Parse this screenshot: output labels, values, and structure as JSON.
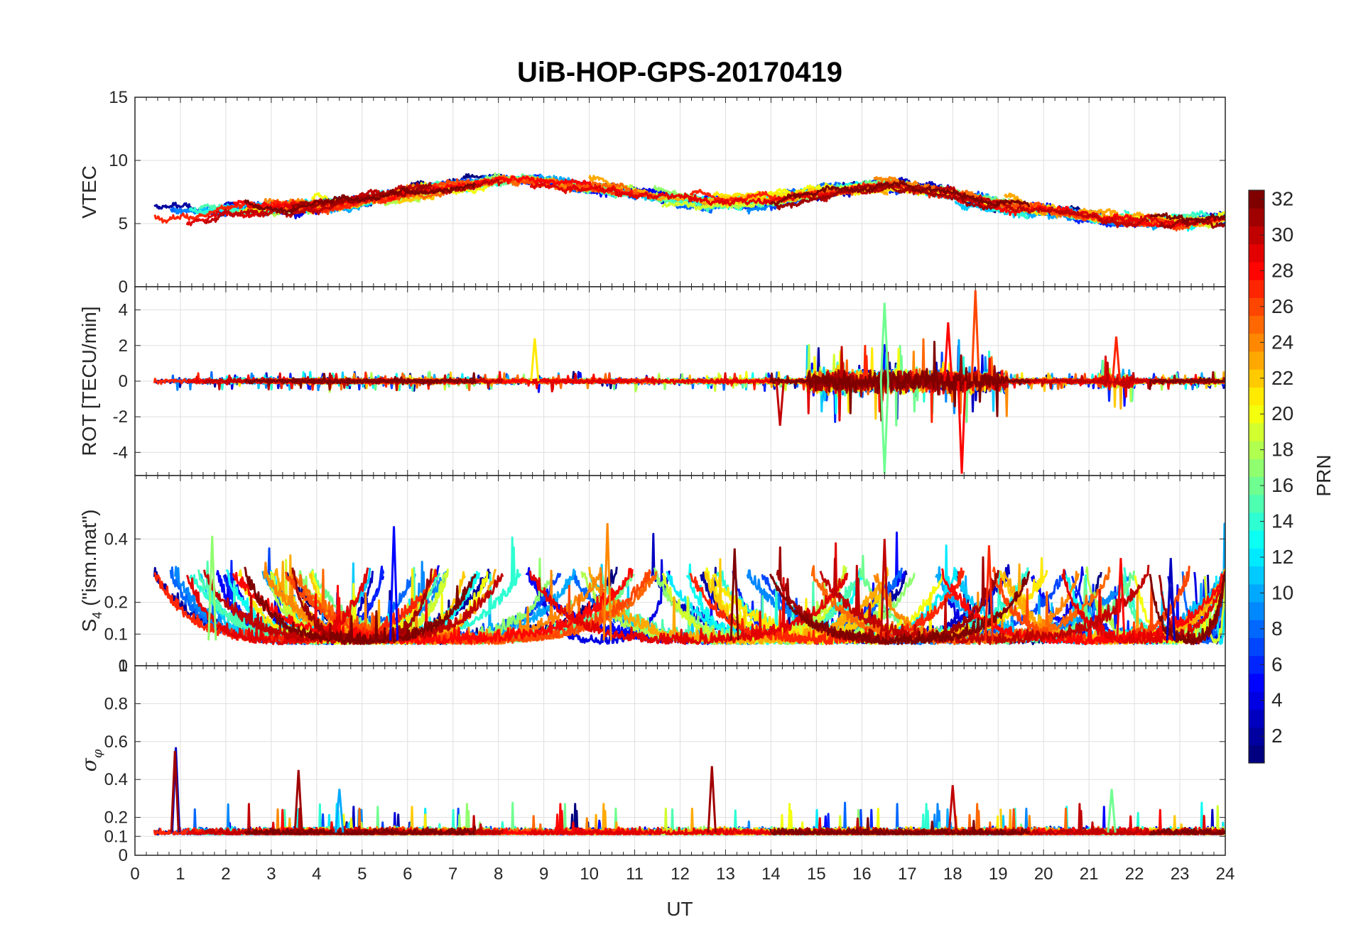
{
  "chart_data": {
    "type": "line",
    "title": "UiB-HOP-GPS-20170419",
    "xlabel": "UT",
    "xlim": [
      0,
      24
    ],
    "x_ticks": [
      "0",
      "1",
      "2",
      "3",
      "4",
      "5",
      "6",
      "7",
      "8",
      "9",
      "10",
      "11",
      "12",
      "13",
      "14",
      "15",
      "16",
      "17",
      "18",
      "19",
      "20",
      "21",
      "22",
      "23",
      "24"
    ],
    "grid": true,
    "colorbar": {
      "label": "PRN",
      "range": [
        1,
        32
      ],
      "ticks": [
        "2",
        "4",
        "6",
        "8",
        "10",
        "12",
        "14",
        "16",
        "18",
        "20",
        "22",
        "24",
        "26",
        "28",
        "30",
        "32"
      ],
      "colormap": "jet",
      "placement": "right"
    },
    "panels": [
      {
        "id": "vtec",
        "ylabel": "VTEC",
        "ylim": [
          0,
          15
        ],
        "y_ticks": [
          "0",
          "5",
          "10",
          "15"
        ],
        "behavior": "slowly varying 4-12 TECU, higher near 7-10 UT and 17-18 UT, lower after 19 UT"
      },
      {
        "id": "rot",
        "ylabel": "ROT [TECU/min]",
        "ylim": [
          -5.3,
          5.3
        ],
        "y_ticks": [
          "-4",
          "-2",
          "0",
          "2",
          "4"
        ],
        "behavior": "near zero, strong spikes between 15 and 19 UT reaching about +5 and -5"
      },
      {
        "id": "s4",
        "ylabel": "S4 (\"ism.mat\")",
        "ylabel_main": "S",
        "ylabel_sub": "4",
        "ylabel_rest": " (\"ism.mat\")",
        "ylim": [
          0,
          0.6
        ],
        "y_ticks": [
          "0",
          "0.1",
          "0.2",
          "0.4"
        ],
        "extra_tick": "1",
        "behavior": "0.05-0.2 with peaks up to about 0.45 near 5.7 UT and 10.4 UT"
      },
      {
        "id": "sigma",
        "ylabel": "σφ",
        "ylabel_main": "σ",
        "ylabel_sub": "φ",
        "ylim": [
          0,
          1
        ],
        "y_ticks": [
          "0",
          "0.1",
          "0.2",
          "0.4",
          "0.6",
          "0.8"
        ],
        "behavior": "0.1-0.2 with spikes near 0.9 UT (0.57), 3.6 UT (0.45), 12.7 UT (0.47)"
      }
    ]
  }
}
